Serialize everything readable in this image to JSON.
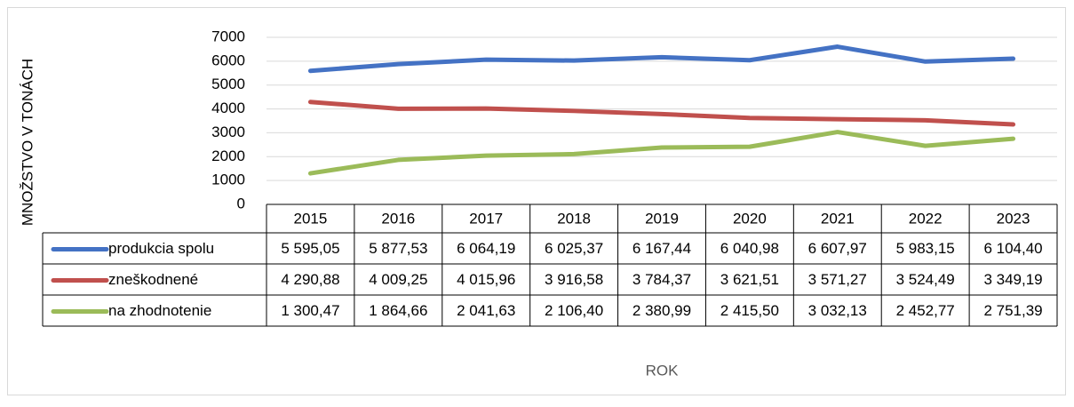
{
  "chart_data": {
    "type": "line",
    "y_axis_label": "MNOŽSTVO V TONÁCH",
    "x_axis_label": "ROK",
    "categories": [
      "2015",
      "2016",
      "2017",
      "2018",
      "2019",
      "2020",
      "2021",
      "2022",
      "2023"
    ],
    "series": [
      {
        "name": "produkcia spolu",
        "color": "#4472c4",
        "values": [
          5595.05,
          5877.53,
          6064.19,
          6025.37,
          6167.44,
          6040.98,
          6607.97,
          5983.15,
          6104.4
        ],
        "value_labels": [
          "5 595,05",
          "5 877,53",
          "6 064,19",
          "6 025,37",
          "6 167,44",
          "6 040,98",
          "6 607,97",
          "5 983,15",
          "6 104,40"
        ]
      },
      {
        "name": "zneškodnené",
        "color": "#c0504d",
        "values": [
          4290.88,
          4009.25,
          4015.96,
          3916.58,
          3784.37,
          3621.51,
          3571.27,
          3524.49,
          3349.19
        ],
        "value_labels": [
          "4 290,88",
          "4 009,25",
          "4 015,96",
          "3 916,58",
          "3 784,37",
          "3 621,51",
          "3 571,27",
          "3 524,49",
          "3 349,19"
        ]
      },
      {
        "name": "na zhodnotenie",
        "color": "#9bbb59",
        "values": [
          1300.47,
          1864.66,
          2041.63,
          2106.4,
          2380.99,
          2415.5,
          3032.13,
          2452.77,
          2751.39
        ],
        "value_labels": [
          "1 300,47",
          "1 864,66",
          "2 041,63",
          "2 106,40",
          "2 380,99",
          "2 415,50",
          "3 032,13",
          "2 452,77",
          "2 751,39"
        ]
      }
    ],
    "ylim": [
      0,
      7000
    ],
    "yticks": [
      0,
      1000,
      2000,
      3000,
      4000,
      5000,
      6000,
      7000
    ],
    "grid": true
  }
}
